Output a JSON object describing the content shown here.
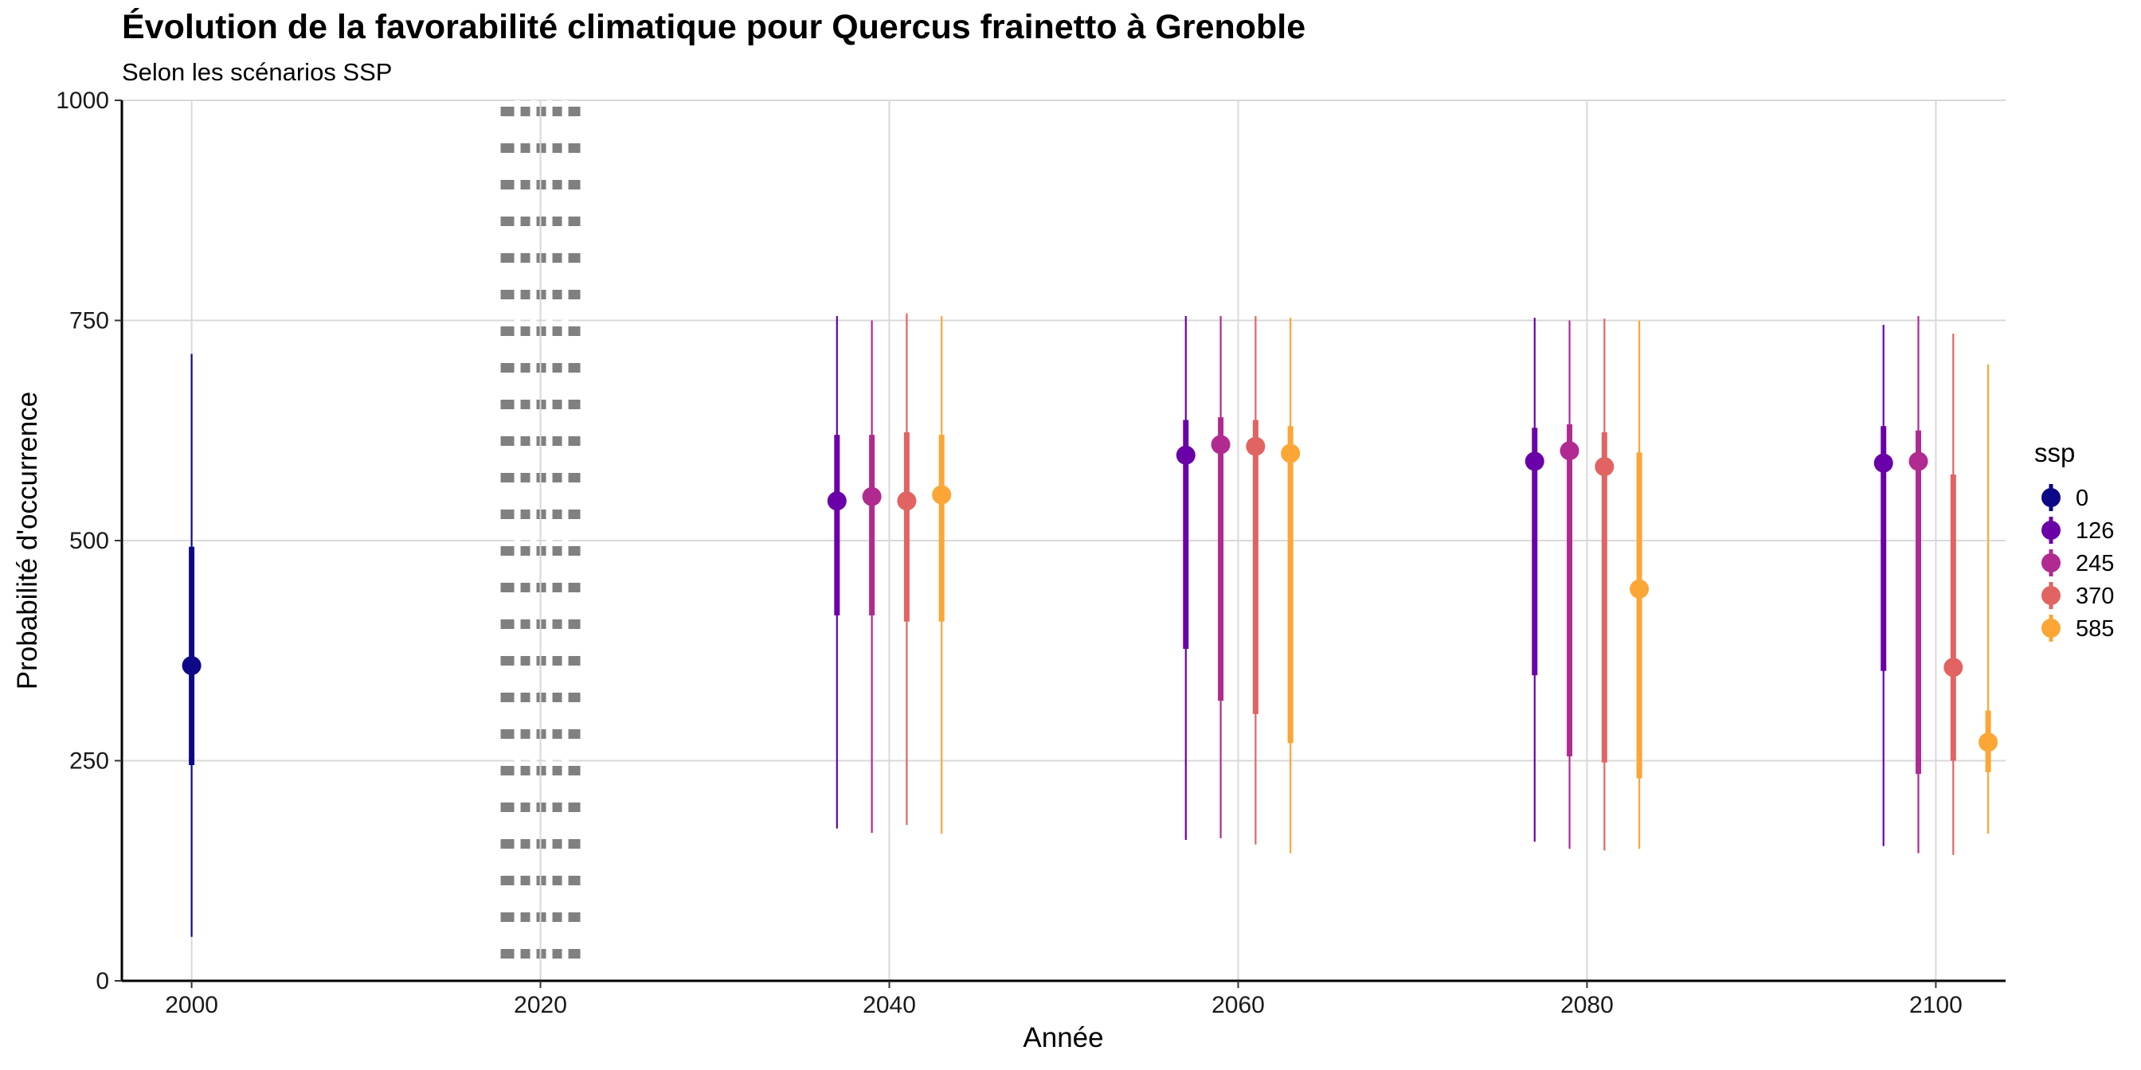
{
  "chart_data": {
    "type": "pointrange",
    "title": "Évolution de la favorabilité climatique pour Quercus frainetto à Grenoble",
    "subtitle": "Selon les scénarios SSP",
    "xlabel": "Année",
    "ylabel": "Probabilité d'occurrence",
    "xlim": [
      1996,
      2104
    ],
    "ylim": [
      0,
      1000
    ],
    "x_ticks": [
      "2000",
      "2020",
      "2040",
      "2060",
      "2080",
      "2100"
    ],
    "y_ticks": [
      "0",
      "250",
      "500",
      "750",
      "1000"
    ],
    "grid": true,
    "reference_line": {
      "x": 2020,
      "style": "dotted",
      "color": "#808080"
    },
    "legend": {
      "title": "ssp",
      "position": "right",
      "entries": [
        {
          "label": "0",
          "color": "#0d0887"
        },
        {
          "label": "126",
          "color": "#6a00a8"
        },
        {
          "label": "245",
          "color": "#b12a90"
        },
        {
          "label": "370",
          "color": "#e16462"
        },
        {
          "label": "585",
          "color": "#fca636"
        }
      ]
    },
    "series": [
      {
        "ssp": "0",
        "color": "#0d0887",
        "points": [
          {
            "x": 2000,
            "median": 358,
            "q25": 245,
            "q75": 493,
            "min": 50,
            "max": 712
          }
        ]
      },
      {
        "ssp": "126",
        "color": "#6a00a8",
        "points": [
          {
            "x": 2037,
            "median": 545,
            "q25": 415,
            "q75": 620,
            "min": 173,
            "max": 755
          },
          {
            "x": 2057,
            "median": 597,
            "q25": 377,
            "q75": 637,
            "min": 160,
            "max": 755
          },
          {
            "x": 2077,
            "median": 590,
            "q25": 347,
            "q75": 628,
            "min": 158,
            "max": 753
          },
          {
            "x": 2097,
            "median": 588,
            "q25": 352,
            "q75": 630,
            "min": 153,
            "max": 745
          }
        ]
      },
      {
        "ssp": "245",
        "color": "#b12a90",
        "points": [
          {
            "x": 2039,
            "median": 550,
            "q25": 415,
            "q75": 620,
            "min": 168,
            "max": 750
          },
          {
            "x": 2059,
            "median": 609,
            "q25": 318,
            "q75": 640,
            "min": 162,
            "max": 755
          },
          {
            "x": 2079,
            "median": 602,
            "q25": 255,
            "q75": 632,
            "min": 150,
            "max": 750
          },
          {
            "x": 2099,
            "median": 590,
            "q25": 235,
            "q75": 625,
            "min": 145,
            "max": 755
          }
        ]
      },
      {
        "ssp": "370",
        "color": "#e16462",
        "points": [
          {
            "x": 2041,
            "median": 545,
            "q25": 408,
            "q75": 623,
            "min": 177,
            "max": 758
          },
          {
            "x": 2061,
            "median": 607,
            "q25": 303,
            "q75": 637,
            "min": 155,
            "max": 755
          },
          {
            "x": 2081,
            "median": 584,
            "q25": 248,
            "q75": 623,
            "min": 148,
            "max": 752
          },
          {
            "x": 2101,
            "median": 356,
            "q25": 250,
            "q75": 575,
            "min": 143,
            "max": 735
          }
        ]
      },
      {
        "ssp": "585",
        "color": "#fca636",
        "points": [
          {
            "x": 2043,
            "median": 552,
            "q25": 408,
            "q75": 620,
            "min": 167,
            "max": 755
          },
          {
            "x": 2063,
            "median": 599,
            "q25": 270,
            "q75": 630,
            "min": 145,
            "max": 753
          },
          {
            "x": 2083,
            "median": 445,
            "q25": 230,
            "q75": 600,
            "min": 150,
            "max": 750
          },
          {
            "x": 2103,
            "median": 271,
            "q25": 237,
            "q75": 307,
            "min": 167,
            "max": 700
          }
        ]
      }
    ]
  }
}
